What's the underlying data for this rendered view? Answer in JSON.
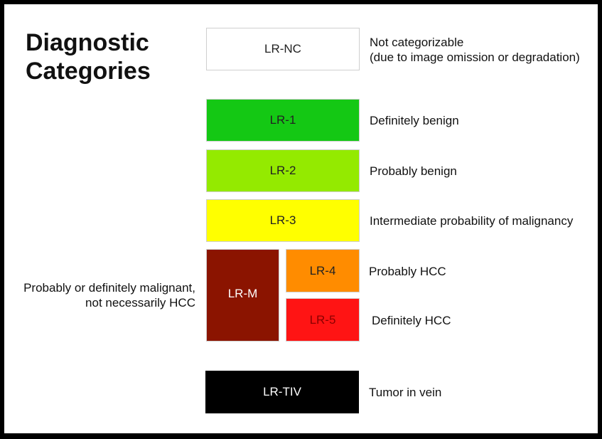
{
  "title": {
    "line1": "Diagnostic",
    "line2": "Categories"
  },
  "categories": [
    {
      "label": "LR-NC",
      "color": "#ffffff",
      "desc_line1": "Not categorizable",
      "desc_line2": "(due to image omission or degradation)"
    },
    {
      "label": "LR-1",
      "color": "#14c814",
      "desc": "Definitely benign"
    },
    {
      "label": "LR-2",
      "color": "#94ea00",
      "desc": "Probably benign"
    },
    {
      "label": "LR-3",
      "color": "#ffff00",
      "desc": "Intermediate probability of malignancy"
    },
    {
      "label": "LR-M",
      "color": "#8b1400",
      "desc_line1": "Probably or definitely malignant,",
      "desc_line2": "not necessarily HCC"
    },
    {
      "label": "LR-4",
      "color": "#ff8c00",
      "desc": "Probably HCC"
    },
    {
      "label": "LR-5",
      "color": "#ff1414",
      "desc": "Definitely HCC"
    },
    {
      "label": "LR-TIV",
      "color": "#000000",
      "desc": "Tumor in vein"
    }
  ]
}
